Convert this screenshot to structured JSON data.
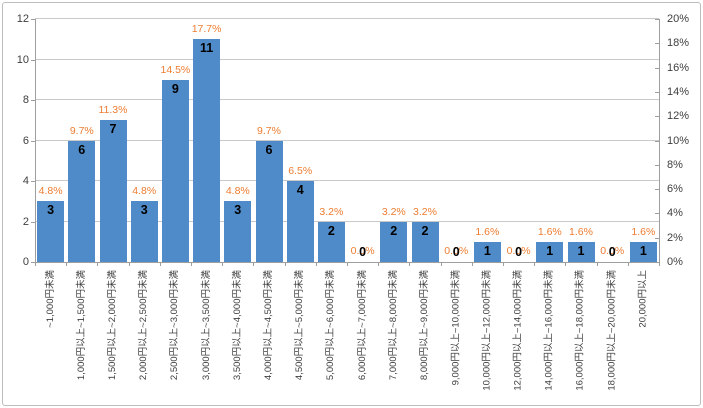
{
  "chart_data": {
    "type": "bar",
    "title": "",
    "categories": [
      "~1,000円未満",
      "1,000円以上~1,500円未満",
      "1,500円以上~2,000円未満",
      "2,000円以上~2,500円未満",
      "2,500円以上~3,000円未満",
      "3,000円以上~3,500円未満",
      "3,500円以上~4,000円未満",
      "4,000円以上~4,500円未満",
      "4,500円以上~5,000円未満",
      "5,000円以上~6,000円未満",
      "6,000円以上~7,000円未満",
      "7,000円以上~8,000円未満",
      "8,000円以上~9,000円未満",
      "9,000円以上~10,000円未満",
      "10,000円以上~12,000円未満",
      "12,000円以上~14,000円未満",
      "14,000円以上~16,000円未満",
      "16,000円以上~18,000円未満",
      "18,000円以上~20,000円未満",
      "20,000円以上"
    ],
    "series": [
      {
        "name": "count",
        "axis": "left",
        "values": [
          3,
          6,
          7,
          3,
          9,
          11,
          3,
          6,
          4,
          2,
          0,
          2,
          2,
          0,
          1,
          0,
          1,
          1,
          0,
          1
        ],
        "bar_color": "#4e8bc8",
        "label_color": "#000000"
      },
      {
        "name": "percent",
        "axis": "right",
        "values_display": [
          "4.8%",
          "9.7%",
          "11.3%",
          "4.8%",
          "14.5%",
          "17.7%",
          "4.8%",
          "9.7%",
          "6.5%",
          "3.2%",
          "0.0%",
          "3.2%",
          "3.2%",
          "0.0%",
          "1.6%",
          "0.0%",
          "1.6%",
          "1.6%",
          "0.0%",
          "1.6%"
        ],
        "label_color": "#ed7d31"
      }
    ],
    "left_axis": {
      "min": 0,
      "max": 12,
      "step": 2,
      "tick_labels": [
        "0",
        "2",
        "4",
        "6",
        "8",
        "10",
        "12"
      ]
    },
    "right_axis": {
      "min": 0,
      "max": 20,
      "step": 2,
      "tick_labels": [
        "0%",
        "2%",
        "4%",
        "6%",
        "8%",
        "10%",
        "12%",
        "14%",
        "16%",
        "18%",
        "20%"
      ]
    },
    "grid": true,
    "legend_position": "none",
    "colors": {
      "gridline": "#c9c9c9",
      "axis_line": "#9e9e9e",
      "tick_text": "#3f3f3f",
      "chart_border": "#bdbdbd",
      "background": "#ffffff"
    }
  }
}
